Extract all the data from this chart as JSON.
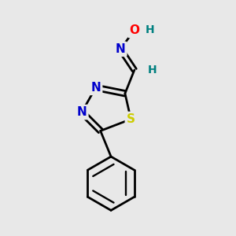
{
  "background_color": "#e8e8e8",
  "atom_colors": {
    "C": "#000000",
    "N": "#0000cc",
    "S": "#cccc00",
    "O": "#ff0000",
    "H": "#008080"
  },
  "bond_color": "#000000",
  "bond_width": 2.0,
  "fig_size": [
    3.0,
    3.0
  ],
  "dpi": 100,
  "xlim": [
    0,
    10
  ],
  "ylim": [
    0,
    10
  ]
}
